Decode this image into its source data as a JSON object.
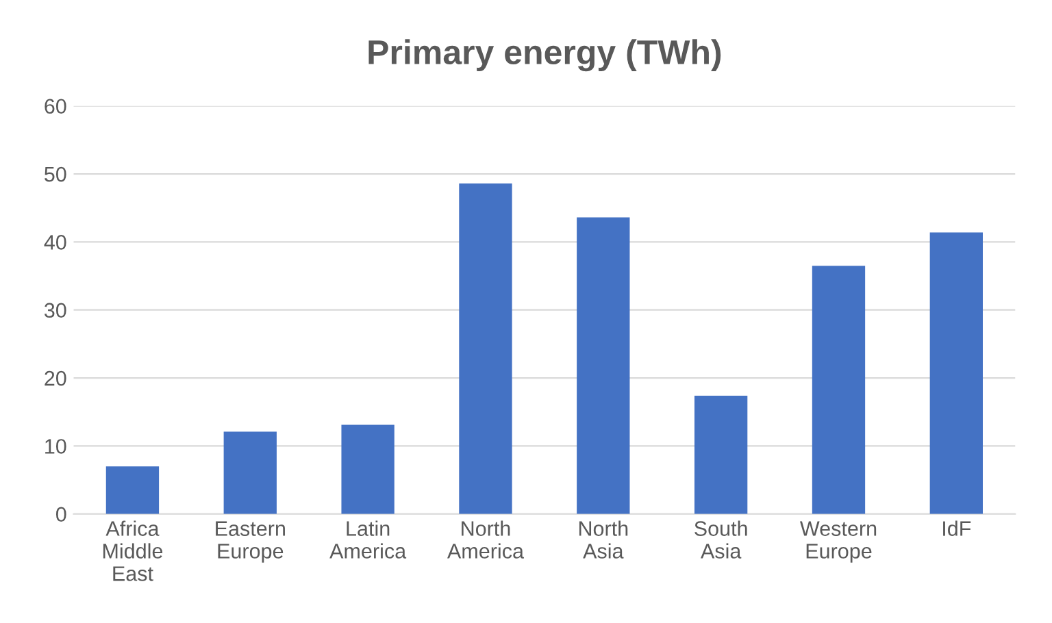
{
  "chart_data": {
    "type": "bar",
    "title": "Primary energy (TWh)",
    "categories": [
      "Africa\nMiddle\nEast",
      "Eastern\nEurope",
      "Latin\nAmerica",
      "North\nAmerica",
      "North\nAsia",
      "South\nAsia",
      "Western\nEurope",
      "IdF"
    ],
    "values": [
      7.0,
      12.1,
      13.1,
      48.6,
      43.6,
      17.4,
      36.5,
      41.4
    ],
    "color": "#4472c4",
    "ylim": [
      0,
      60
    ],
    "yticks": [
      0,
      10,
      20,
      30,
      40,
      50,
      60
    ],
    "grid": "y",
    "legend": false
  }
}
